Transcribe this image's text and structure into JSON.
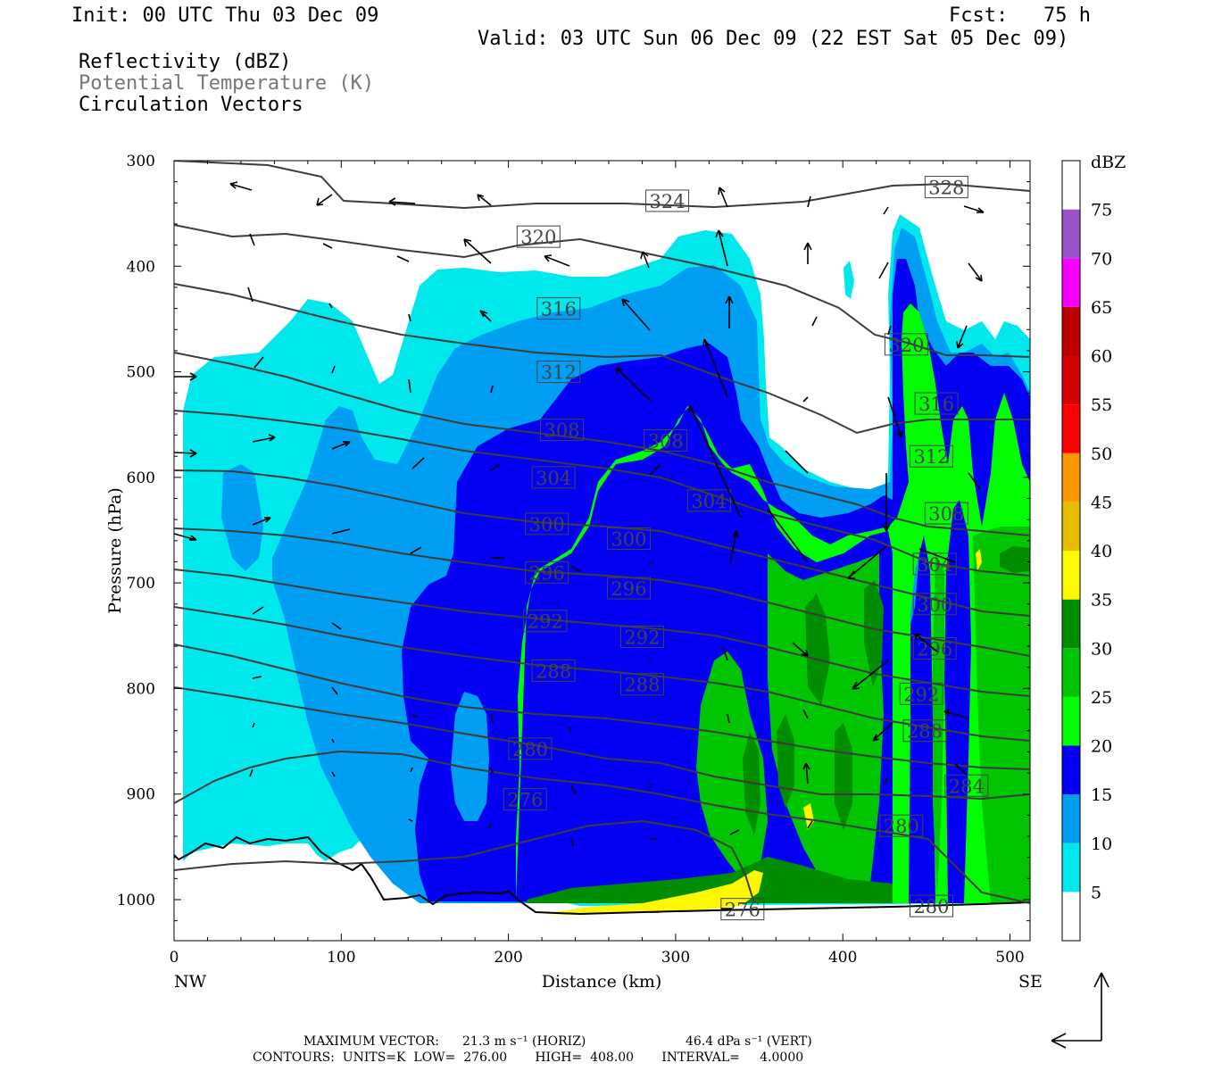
{
  "header": {
    "init": "Init: 00 UTC Thu 03 Dec 09",
    "fcst": "Fcst:   75 h",
    "valid": "Valid: 03 UTC Sun 06 Dec 09 (22 EST Sat 05 Dec 09)",
    "fields": [
      "Reflectivity (dBZ)",
      "Potential Temperature (K)",
      "Circulation Vectors"
    ]
  },
  "footer": {
    "max_vector_label": "MAXIMUM VECTOR:",
    "horiz": "21.3 m s⁻¹ (HORIZ)",
    "vert": "46.4 dPa s⁻¹ (VERT)",
    "contours": "CONTOURS:  UNITS=K  LOW=  276.00       HIGH=  408.00       INTERVAL=     4.0000"
  },
  "chart_data": {
    "type": "heatmap",
    "title": "Reflectivity (dBZ) / Potential Temperature (K) / Circulation Vectors",
    "xlabel": "Distance (km)",
    "ylabel": "Pressure (hPa)",
    "x_ticks": [
      0,
      100,
      200,
      300,
      400,
      500
    ],
    "y_ticks": [
      300,
      400,
      500,
      600,
      700,
      800,
      900,
      1000
    ],
    "xlim": [
      0,
      512
    ],
    "ylim": [
      1040,
      300
    ],
    "x_end_labels": {
      "left": "NW",
      "right": "SE"
    },
    "colorbar": {
      "label": "dBZ",
      "levels": [
        5,
        10,
        15,
        20,
        25,
        30,
        35,
        40,
        45,
        50,
        55,
        60,
        65,
        70,
        75
      ],
      "colors": [
        "#00e8ec",
        "#019ff4",
        "#0300f4",
        "#02fd02",
        "#01c501",
        "#008e00",
        "#fdf802",
        "#e5bc00",
        "#fd9500",
        "#fd0000",
        "#d40000",
        "#bc0000",
        "#f800fd",
        "#9854c6",
        "#fdfdfd"
      ]
    },
    "theta_contours": {
      "units": "K",
      "low": 276,
      "high": 408,
      "interval": 4,
      "labels": [
        {
          "value": "324",
          "x": 295,
          "p": 338
        },
        {
          "value": "328",
          "x": 462,
          "p": 325
        },
        {
          "value": "320",
          "x": 218,
          "p": 372
        },
        {
          "value": "316",
          "x": 230,
          "p": 440
        },
        {
          "value": "320",
          "x": 438,
          "p": 474
        },
        {
          "value": "312",
          "x": 230,
          "p": 500
        },
        {
          "value": "316",
          "x": 456,
          "p": 530
        },
        {
          "value": "308",
          "x": 232,
          "p": 555
        },
        {
          "value": "308",
          "x": 294,
          "p": 565
        },
        {
          "value": "312",
          "x": 453,
          "p": 580
        },
        {
          "value": "304",
          "x": 227,
          "p": 600
        },
        {
          "value": "304",
          "x": 320,
          "p": 622
        },
        {
          "value": "308",
          "x": 462,
          "p": 634
        },
        {
          "value": "300",
          "x": 223,
          "p": 644
        },
        {
          "value": "300",
          "x": 272,
          "p": 658
        },
        {
          "value": "304",
          "x": 455,
          "p": 682
        },
        {
          "value": "296",
          "x": 223,
          "p": 690
        },
        {
          "value": "296",
          "x": 272,
          "p": 705
        },
        {
          "value": "300",
          "x": 455,
          "p": 720
        },
        {
          "value": "292",
          "x": 222,
          "p": 736
        },
        {
          "value": "292",
          "x": 280,
          "p": 751
        },
        {
          "value": "296",
          "x": 455,
          "p": 762
        },
        {
          "value": "288",
          "x": 227,
          "p": 783
        },
        {
          "value": "288",
          "x": 280,
          "p": 796
        },
        {
          "value": "292",
          "x": 447,
          "p": 805
        },
        {
          "value": "288",
          "x": 449,
          "p": 840
        },
        {
          "value": "280",
          "x": 213,
          "p": 857
        },
        {
          "value": "284",
          "x": 474,
          "p": 892
        },
        {
          "value": "276",
          "x": 210,
          "p": 905
        },
        {
          "value": "280",
          "x": 435,
          "p": 930
        },
        {
          "value": "276",
          "x": 340,
          "p": 1009
        },
        {
          "value": "280",
          "x": 453,
          "p": 1006
        }
      ]
    },
    "max_vector": {
      "horiz_m_s": 21.3,
      "vert_dPa_s": 46.4
    }
  }
}
